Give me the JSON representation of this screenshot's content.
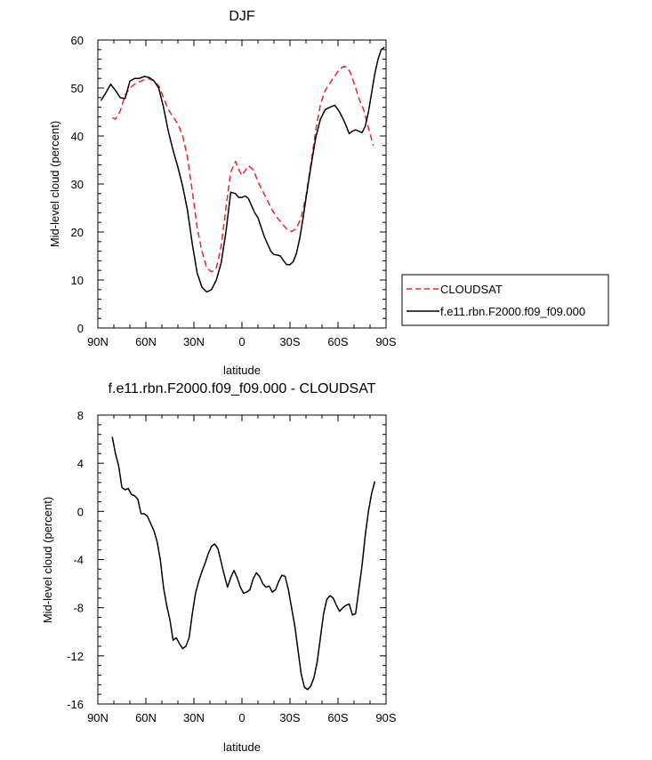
{
  "chart_data": [
    {
      "type": "line",
      "title": "DJF",
      "xlabel": "latitude",
      "ylabel": "Mid-level cloud (percent)",
      "xlim": [
        90,
        -90
      ],
      "ylim": [
        0,
        60
      ],
      "x_ticks": [
        90,
        60,
        30,
        0,
        -30,
        -60,
        -90
      ],
      "x_tick_labels": [
        "90N",
        "60N",
        "30N",
        "0",
        "30S",
        "60S",
        "90S"
      ],
      "y_ticks": [
        0,
        10,
        20,
        30,
        40,
        50,
        60
      ],
      "y_tick_labels": [
        "0",
        "10",
        "20",
        "30",
        "40",
        "50",
        "60"
      ],
      "grid": false,
      "legend": {
        "placement": "right-outside",
        "entries": [
          "CLOUDSAT",
          "f.e11.rbn.F2000.f09_f09.000"
        ]
      },
      "series": [
        {
          "name": "CLOUDSAT",
          "color": "#e8262a",
          "dash": "dashed",
          "x": [
            81,
            79,
            76,
            73,
            70,
            67,
            64,
            61,
            58,
            55,
            52,
            49,
            46,
            43,
            40,
            37,
            34,
            31,
            28,
            25,
            22,
            19,
            16,
            13,
            10,
            7,
            4,
            2,
            0,
            -2,
            -4,
            -7,
            -10,
            -13,
            -16,
            -19,
            -22,
            -25,
            -28,
            -31,
            -34,
            -37,
            -40,
            -43,
            -46,
            -49,
            -52,
            -55,
            -58,
            -61,
            -64,
            -66,
            -68,
            -70,
            -72,
            -74,
            -76,
            -78,
            -80,
            -82
          ],
          "values": [
            43.8,
            43.5,
            45.2,
            48.5,
            50.0,
            50.8,
            51.3,
            51.7,
            51.9,
            51.5,
            50.5,
            48.0,
            45.5,
            44.0,
            42.5,
            40.0,
            35.5,
            28.5,
            21.0,
            16.0,
            12.5,
            11.7,
            12.5,
            17.0,
            25.0,
            32.5,
            34.7,
            33.0,
            31.8,
            32.8,
            33.8,
            33.0,
            30.5,
            28.5,
            26.5,
            24.5,
            23.0,
            21.8,
            20.6,
            20.1,
            20.7,
            23.0,
            27.5,
            34.0,
            41.0,
            46.5,
            49.5,
            51.0,
            52.5,
            54.0,
            54.5,
            54.2,
            53.0,
            51.0,
            49.0,
            47.0,
            45.5,
            43.0,
            40.5,
            38.0
          ]
        },
        {
          "name": "f.e11.rbn.F2000.f09_f09.000",
          "color": "#000000",
          "dash": "solid",
          "x": [
            88,
            85,
            82,
            79,
            76,
            73,
            70,
            67,
            64,
            61,
            58,
            55,
            52,
            49,
            46,
            43,
            40,
            37,
            34,
            31,
            28,
            25,
            22,
            19,
            16,
            13,
            10,
            7,
            4,
            2,
            0,
            -2,
            -4,
            -6,
            -8,
            -10,
            -12,
            -14,
            -16,
            -18,
            -20,
            -22,
            -24,
            -26,
            -28,
            -30,
            -32,
            -34,
            -36,
            -38,
            -40,
            -43,
            -46,
            -49,
            -52,
            -55,
            -58,
            -61,
            -64,
            -67,
            -69,
            -71,
            -73,
            -75,
            -77,
            -79,
            -81,
            -83,
            -85,
            -87,
            -89
          ],
          "values": [
            47.4,
            49.0,
            50.8,
            49.5,
            48.0,
            47.8,
            51.4,
            52.0,
            52.0,
            52.4,
            52.2,
            51.5,
            50.0,
            46.0,
            41.0,
            37.0,
            33.5,
            29.5,
            24.5,
            17.5,
            11.5,
            8.5,
            7.5,
            8.0,
            10.0,
            13.5,
            20.0,
            28.3,
            28.0,
            27.2,
            27.2,
            27.5,
            27.0,
            25.5,
            24.0,
            23.0,
            21.0,
            19.0,
            17.5,
            16.0,
            15.3,
            15.2,
            15.0,
            14.0,
            13.2,
            13.2,
            13.8,
            15.5,
            18.5,
            22.5,
            27.0,
            33.5,
            39.5,
            43.5,
            45.5,
            46.0,
            46.4,
            45.0,
            43.0,
            40.5,
            41.0,
            41.3,
            41.0,
            40.7,
            42.0,
            45.0,
            49.0,
            53.0,
            56.0,
            58.0,
            58.5
          ]
        }
      ]
    },
    {
      "type": "line",
      "title": "f.e11.rbn.F2000.f09_f09.000 - CLOUDSAT",
      "xlabel": "latitude",
      "ylabel": "Mid-level cloud (percent)",
      "xlim": [
        90,
        -90
      ],
      "ylim": [
        -16,
        8
      ],
      "x_ticks": [
        90,
        60,
        30,
        0,
        -30,
        -60,
        -90
      ],
      "x_tick_labels": [
        "90N",
        "60N",
        "30N",
        "0",
        "30S",
        "60S",
        "90S"
      ],
      "y_ticks": [
        8,
        4,
        0,
        -4,
        -8,
        -12,
        -16
      ],
      "y_tick_labels": [
        "8",
        "4",
        "0",
        "-4",
        "-8",
        "-12",
        "-16"
      ],
      "grid": false,
      "series": [
        {
          "color": "#000000",
          "dash": "solid",
          "x": [
            81,
            79,
            77,
            75,
            73,
            71,
            69,
            67,
            65,
            63,
            61,
            59,
            57,
            55,
            53,
            51,
            49,
            47,
            45,
            43,
            41,
            39,
            37,
            35,
            33,
            31,
            29,
            27,
            25,
            23,
            21,
            19,
            17,
            15,
            13,
            11,
            9,
            7,
            5,
            3,
            1,
            -1,
            -3,
            -5,
            -7,
            -9,
            -11,
            -13,
            -15,
            -17,
            -19,
            -21,
            -23,
            -25,
            -27,
            -29,
            -31,
            -33,
            -35,
            -37,
            -39,
            -41,
            -43,
            -45,
            -47,
            -49,
            -51,
            -53,
            -55,
            -57,
            -59,
            -61,
            -63,
            -65,
            -67,
            -69,
            -71,
            -73,
            -75,
            -77,
            -79,
            -81,
            -83
          ],
          "values": [
            6.2,
            4.8,
            3.8,
            2.0,
            1.8,
            1.9,
            1.4,
            1.3,
            1.0,
            -0.2,
            -0.2,
            -0.4,
            -1.0,
            -1.6,
            -2.5,
            -4.0,
            -6.3,
            -7.8,
            -9.0,
            -10.7,
            -10.5,
            -11.0,
            -11.4,
            -11.2,
            -10.5,
            -8.5,
            -6.8,
            -5.8,
            -5.0,
            -4.3,
            -3.5,
            -2.9,
            -2.7,
            -3.1,
            -4.2,
            -5.3,
            -6.3,
            -5.5,
            -4.9,
            -5.5,
            -6.3,
            -6.8,
            -6.7,
            -6.5,
            -5.6,
            -5.1,
            -5.4,
            -6.0,
            -6.3,
            -6.2,
            -6.7,
            -6.5,
            -5.8,
            -5.3,
            -5.4,
            -6.5,
            -8.0,
            -9.5,
            -11.5,
            -13.5,
            -14.6,
            -14.8,
            -14.5,
            -13.8,
            -12.5,
            -10.5,
            -8.5,
            -7.3,
            -7.0,
            -7.2,
            -7.8,
            -8.3,
            -8.0,
            -7.8,
            -7.7,
            -8.6,
            -8.5,
            -6.5,
            -4.5,
            -2.0,
            0.0,
            1.5,
            2.5
          ]
        }
      ]
    }
  ]
}
